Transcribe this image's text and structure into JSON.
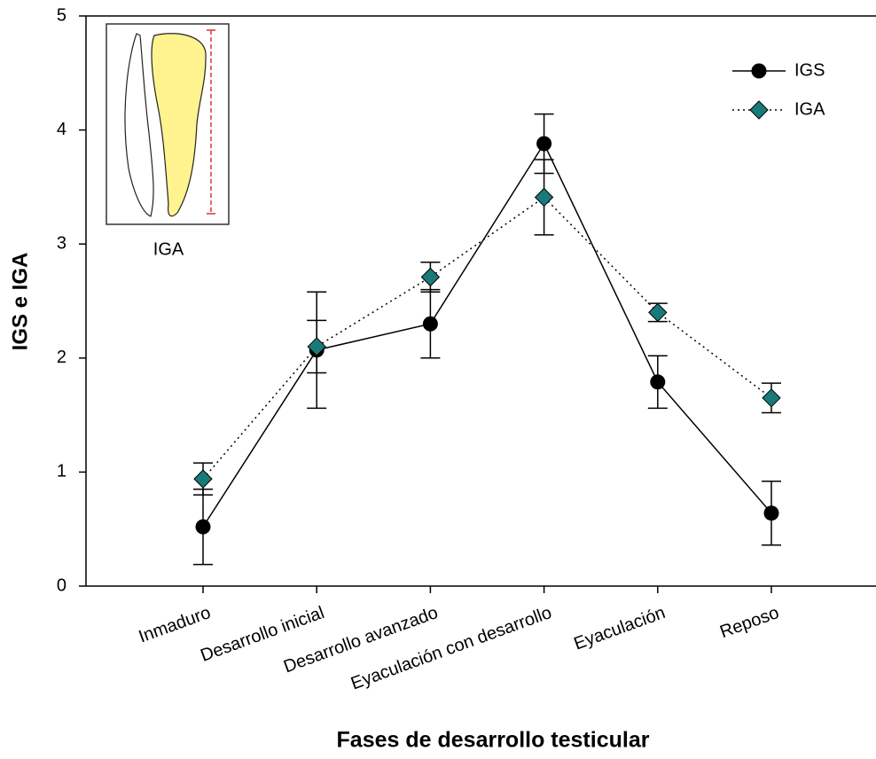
{
  "chart_data": {
    "type": "line",
    "categories": [
      "Inmaduro",
      "Desarrollo inicial",
      "Desarrollo avanzado",
      "Eyaculación con desarrollo",
      "Eyaculación",
      "Reposo"
    ],
    "series": [
      {
        "name": "IGS",
        "color": "#000000",
        "marker": "circle",
        "dash": "solid",
        "values": [
          0.52,
          2.07,
          2.3,
          3.88,
          1.79,
          0.64
        ],
        "errors": [
          0.33,
          0.51,
          0.3,
          0.26,
          0.23,
          0.28
        ]
      },
      {
        "name": "IGA",
        "color": "#1a7a7a",
        "marker": "diamond",
        "dash": "dotted",
        "values": [
          0.94,
          2.1,
          2.71,
          3.41,
          2.4,
          1.65
        ],
        "errors": [
          0.14,
          0.23,
          0.13,
          0.33,
          0.08,
          0.13
        ]
      }
    ],
    "ylim": [
      0,
      5
    ],
    "yticks": [
      0,
      1,
      2,
      3,
      4,
      5
    ],
    "y_label": "IGS e IGA",
    "x_label": "Fases de desarrollo testicular",
    "inset_label": "IGA",
    "legend": "upper right"
  }
}
